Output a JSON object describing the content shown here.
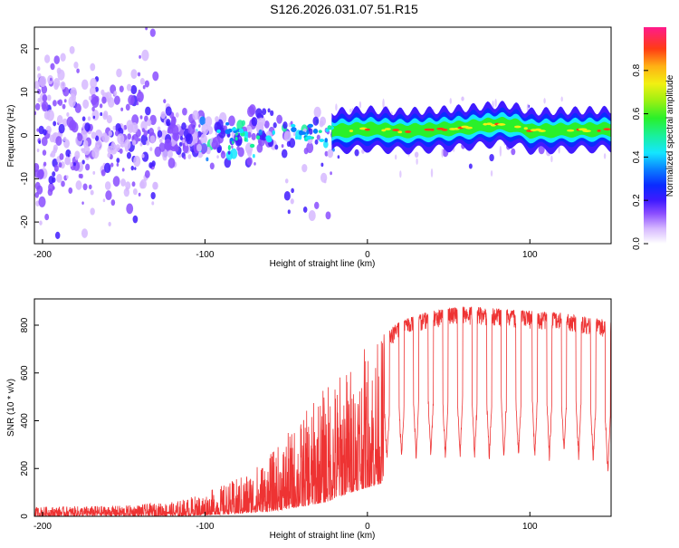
{
  "page_title": "S126.2026.031.07.51.R15",
  "chart_data": [
    {
      "type": "heatmap",
      "title": "S126.2026.031.07.51.R15",
      "xlabel": "Height of straight line (km)",
      "ylabel": "Frequency (Hz)",
      "xlim": [
        -205,
        150
      ],
      "ylim": [
        -25,
        25
      ],
      "x_ticks": [
        -200,
        -100,
        0,
        100
      ],
      "y_ticks": [
        -20,
        -10,
        0,
        10,
        20
      ],
      "colorbar": {
        "label": "Normalized spectral amplitude",
        "range": [
          0,
          1
        ],
        "ticks": [
          0.0,
          0.2,
          0.4,
          0.6,
          0.8
        ]
      },
      "ridge": {
        "description": "Doppler signal ridge near 0-2 Hz, noisy below -20 km, coherent above",
        "points": [
          {
            "x": -20,
            "y": 1.0
          },
          {
            "x": 0,
            "y": 1.5
          },
          {
            "x": 20,
            "y": 1.0
          },
          {
            "x": 40,
            "y": 1.3
          },
          {
            "x": 60,
            "y": 1.8
          },
          {
            "x": 80,
            "y": 2.6
          },
          {
            "x": 90,
            "y": 2.4
          },
          {
            "x": 100,
            "y": 1.0
          },
          {
            "x": 120,
            "y": 1.2
          },
          {
            "x": 150,
            "y": 1.4
          }
        ]
      }
    },
    {
      "type": "line",
      "xlabel": "Height of straight line (km)",
      "ylabel": "SNR (10 * v/v)",
      "xlim": [
        -205,
        150
      ],
      "ylim": [
        0,
        910
      ],
      "x_ticks": [
        -200,
        -100,
        0,
        100
      ],
      "y_ticks": [
        0,
        200,
        400,
        600,
        800
      ],
      "series": [
        {
          "name": "SNR",
          "color": "#ee3333",
          "envelope_x": [
            -205,
            -150,
            -120,
            -100,
            -80,
            -60,
            -40,
            -25,
            -10,
            0,
            10,
            20,
            30,
            40,
            60,
            80,
            100,
            120,
            150
          ],
          "envelope_low": [
            0,
            0,
            0,
            5,
            10,
            20,
            40,
            60,
            100,
            120,
            140,
            230,
            250,
            270,
            240,
            230,
            230,
            240,
            200
          ],
          "envelope_high": [
            40,
            45,
            60,
            100,
            160,
            260,
            420,
            560,
            650,
            720,
            760,
            820,
            840,
            860,
            880,
            870,
            860,
            850,
            820
          ],
          "dropouts_x": [
            -8,
            3,
            12,
            21,
            30,
            39,
            48,
            57,
            66,
            75,
            84,
            93,
            103,
            112,
            121,
            130,
            139,
            148
          ],
          "dropout_min": [
            200,
            220,
            220,
            220,
            230,
            230,
            220,
            220,
            220,
            220,
            220,
            230,
            230,
            230,
            240,
            230,
            220,
            160
          ]
        }
      ]
    }
  ]
}
